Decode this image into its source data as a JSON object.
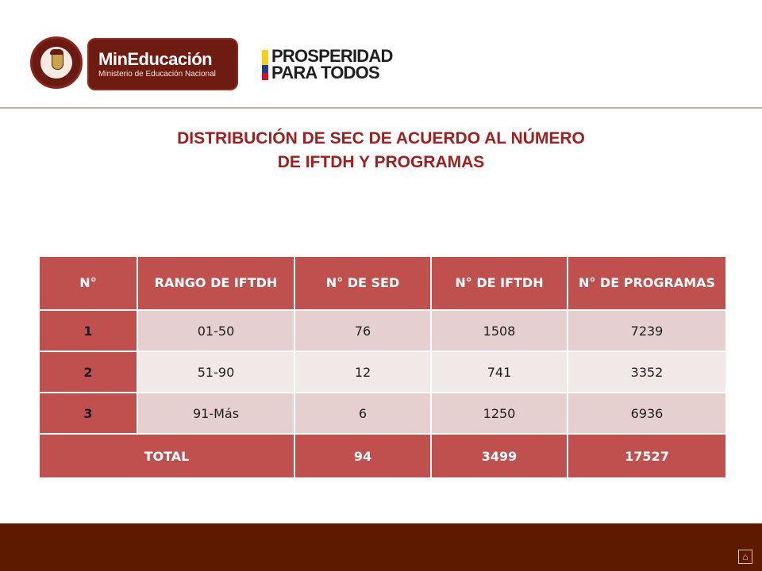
{
  "logos": {
    "ministry_name": "MinEducación",
    "ministry_subtitle": "Ministerio de Educación Nacional",
    "slogan_line1": "PROSPERIDAD",
    "slogan_line2": "PARA TODOS",
    "flag_colors": [
      "#f7d117",
      "#1f3b8c",
      "#ce1126"
    ]
  },
  "title": {
    "line1": "DISTRIBUCIÓN DE SEC DE ACUERDO AL NÚMERO",
    "line2": "DE IFTDH Y PROGRAMAS"
  },
  "table": {
    "headers": [
      "N°",
      "RANGO DE IFTDH",
      "N° DE SED",
      "N° DE IFTDH",
      "N° DE PROGRAMAS"
    ],
    "rows": [
      [
        "1",
        "01-50",
        "76",
        "1508",
        "7239"
      ],
      [
        "2",
        "51-90",
        "12",
        "741",
        "3352"
      ],
      [
        "3",
        "91-Más",
        "6",
        "1250",
        "6936"
      ]
    ],
    "total": [
      "TOTAL",
      "94",
      "3499",
      "17527"
    ]
  },
  "footer": {
    "home_icon": "home-icon"
  },
  "colors": {
    "header_cell": "#c0504d",
    "row_dark": "#e6cfcf",
    "row_light": "#f1e8e8",
    "title": "#a21e1c",
    "footer": "#5e1a00"
  }
}
